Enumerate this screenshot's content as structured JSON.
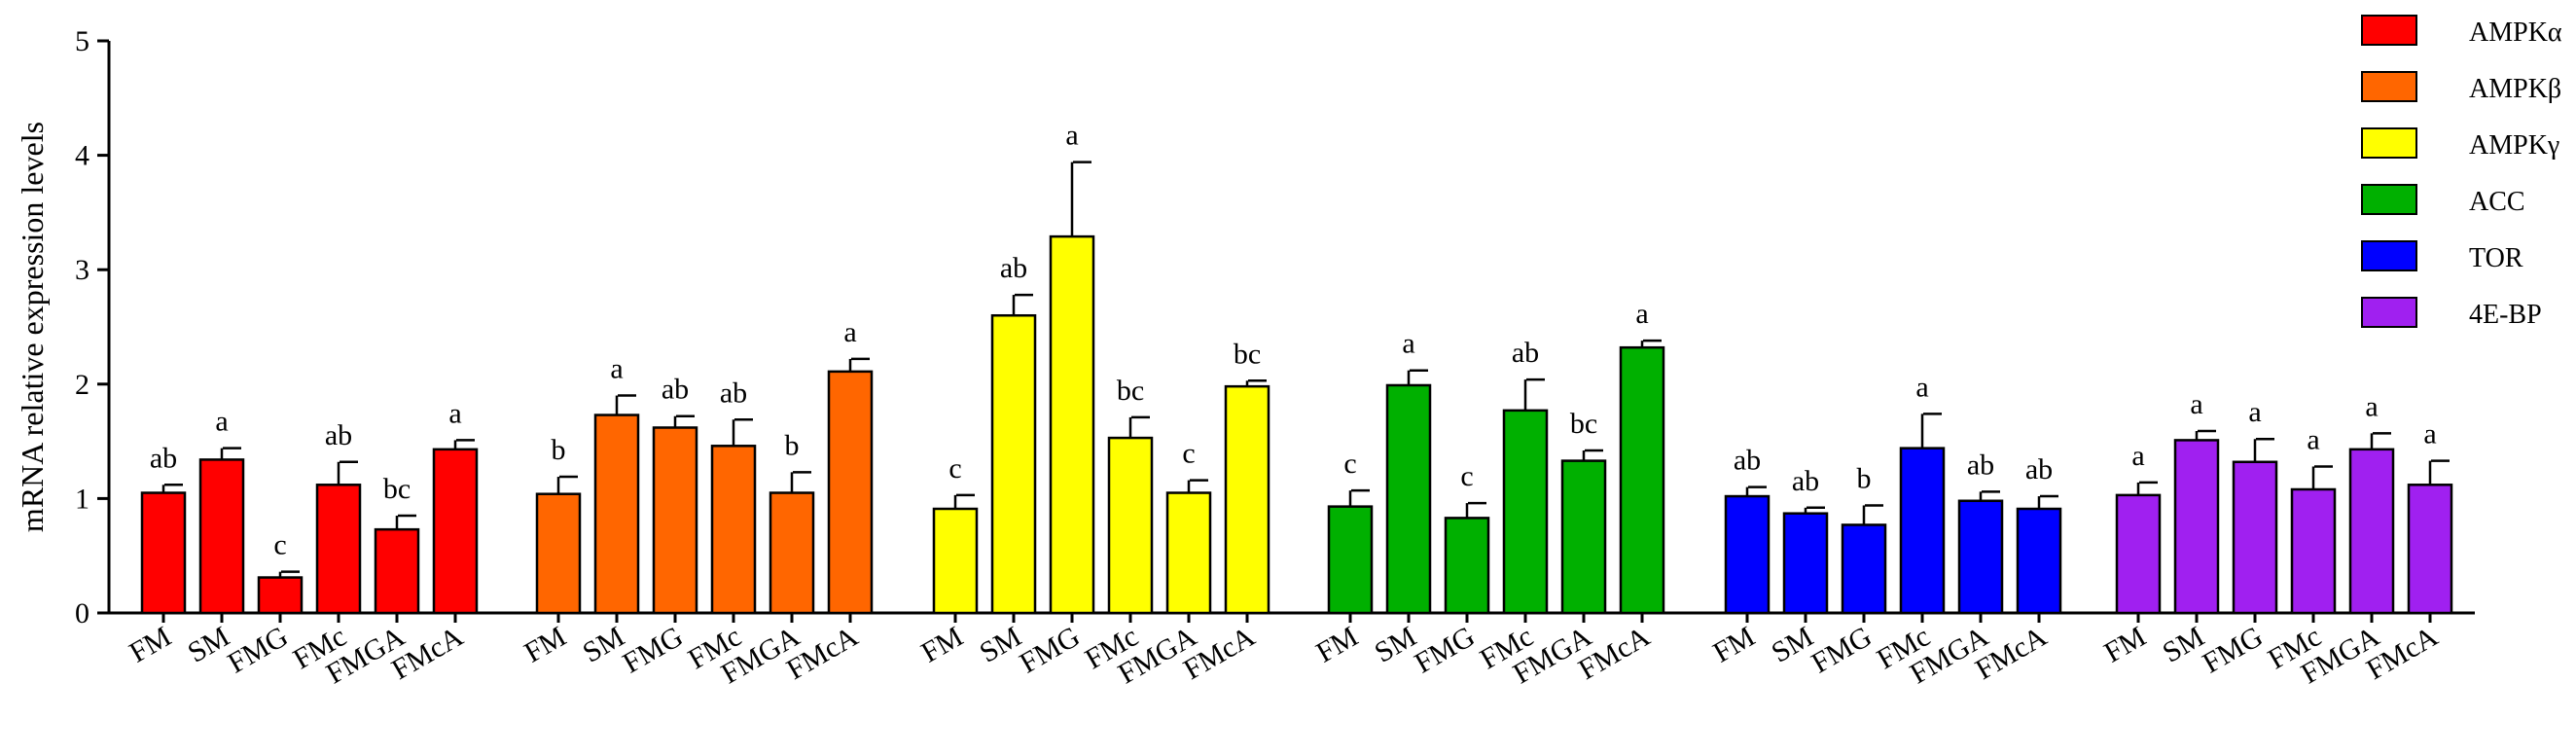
{
  "chart_data": {
    "type": "bar",
    "ylabel": "mRNA relative expression levels",
    "ylim": [
      0,
      5
    ],
    "yticks": [
      0,
      1,
      2,
      3,
      4,
      5
    ],
    "categories": [
      "FM",
      "SM",
      "FMG",
      "FMc",
      "FMGA",
      "FMcA"
    ],
    "legend_position": "top-right",
    "series": [
      {
        "name": "AMPKα",
        "color": "#ff0000",
        "values": [
          1.05,
          1.34,
          0.31,
          1.12,
          0.73,
          1.43
        ],
        "errors": [
          0.07,
          0.1,
          0.05,
          0.2,
          0.12,
          0.08
        ],
        "labels": [
          "ab",
          "a",
          "c",
          "ab",
          "bc",
          "a"
        ]
      },
      {
        "name": "AMPKβ",
        "color": "#ff6600",
        "values": [
          1.04,
          1.73,
          1.62,
          1.46,
          1.05,
          2.11
        ],
        "errors": [
          0.15,
          0.17,
          0.1,
          0.23,
          0.18,
          0.11
        ],
        "labels": [
          "b",
          "a",
          "ab",
          "ab",
          "b",
          "a"
        ]
      },
      {
        "name": "AMPKγ",
        "color": "#ffff00",
        "values": [
          0.91,
          2.6,
          3.29,
          1.53,
          1.05,
          1.98
        ],
        "errors": [
          0.12,
          0.18,
          0.65,
          0.18,
          0.11,
          0.05
        ],
        "labels": [
          "c",
          "ab",
          "a",
          "bc",
          "c",
          "bc"
        ]
      },
      {
        "name": "ACC",
        "color": "#00b000",
        "values": [
          0.93,
          1.99,
          0.83,
          1.77,
          1.33,
          2.32
        ],
        "errors": [
          0.14,
          0.13,
          0.13,
          0.27,
          0.09,
          0.06
        ],
        "labels": [
          "c",
          "a",
          "c",
          "ab",
          "bc",
          "a"
        ]
      },
      {
        "name": "TOR",
        "color": "#0000ff",
        "values": [
          1.02,
          0.87,
          0.77,
          1.44,
          0.98,
          0.91
        ],
        "errors": [
          0.08,
          0.05,
          0.17,
          0.3,
          0.08,
          0.11
        ],
        "labels": [
          "ab",
          "ab",
          "b",
          "a",
          "ab",
          "ab"
        ]
      },
      {
        "name": "4E-BP",
        "color": "#a020f0",
        "values": [
          1.03,
          1.51,
          1.32,
          1.08,
          1.43,
          1.12
        ],
        "errors": [
          0.11,
          0.08,
          0.2,
          0.2,
          0.14,
          0.21
        ],
        "labels": [
          "a",
          "a",
          "a",
          "a",
          "a",
          "a"
        ]
      }
    ]
  }
}
